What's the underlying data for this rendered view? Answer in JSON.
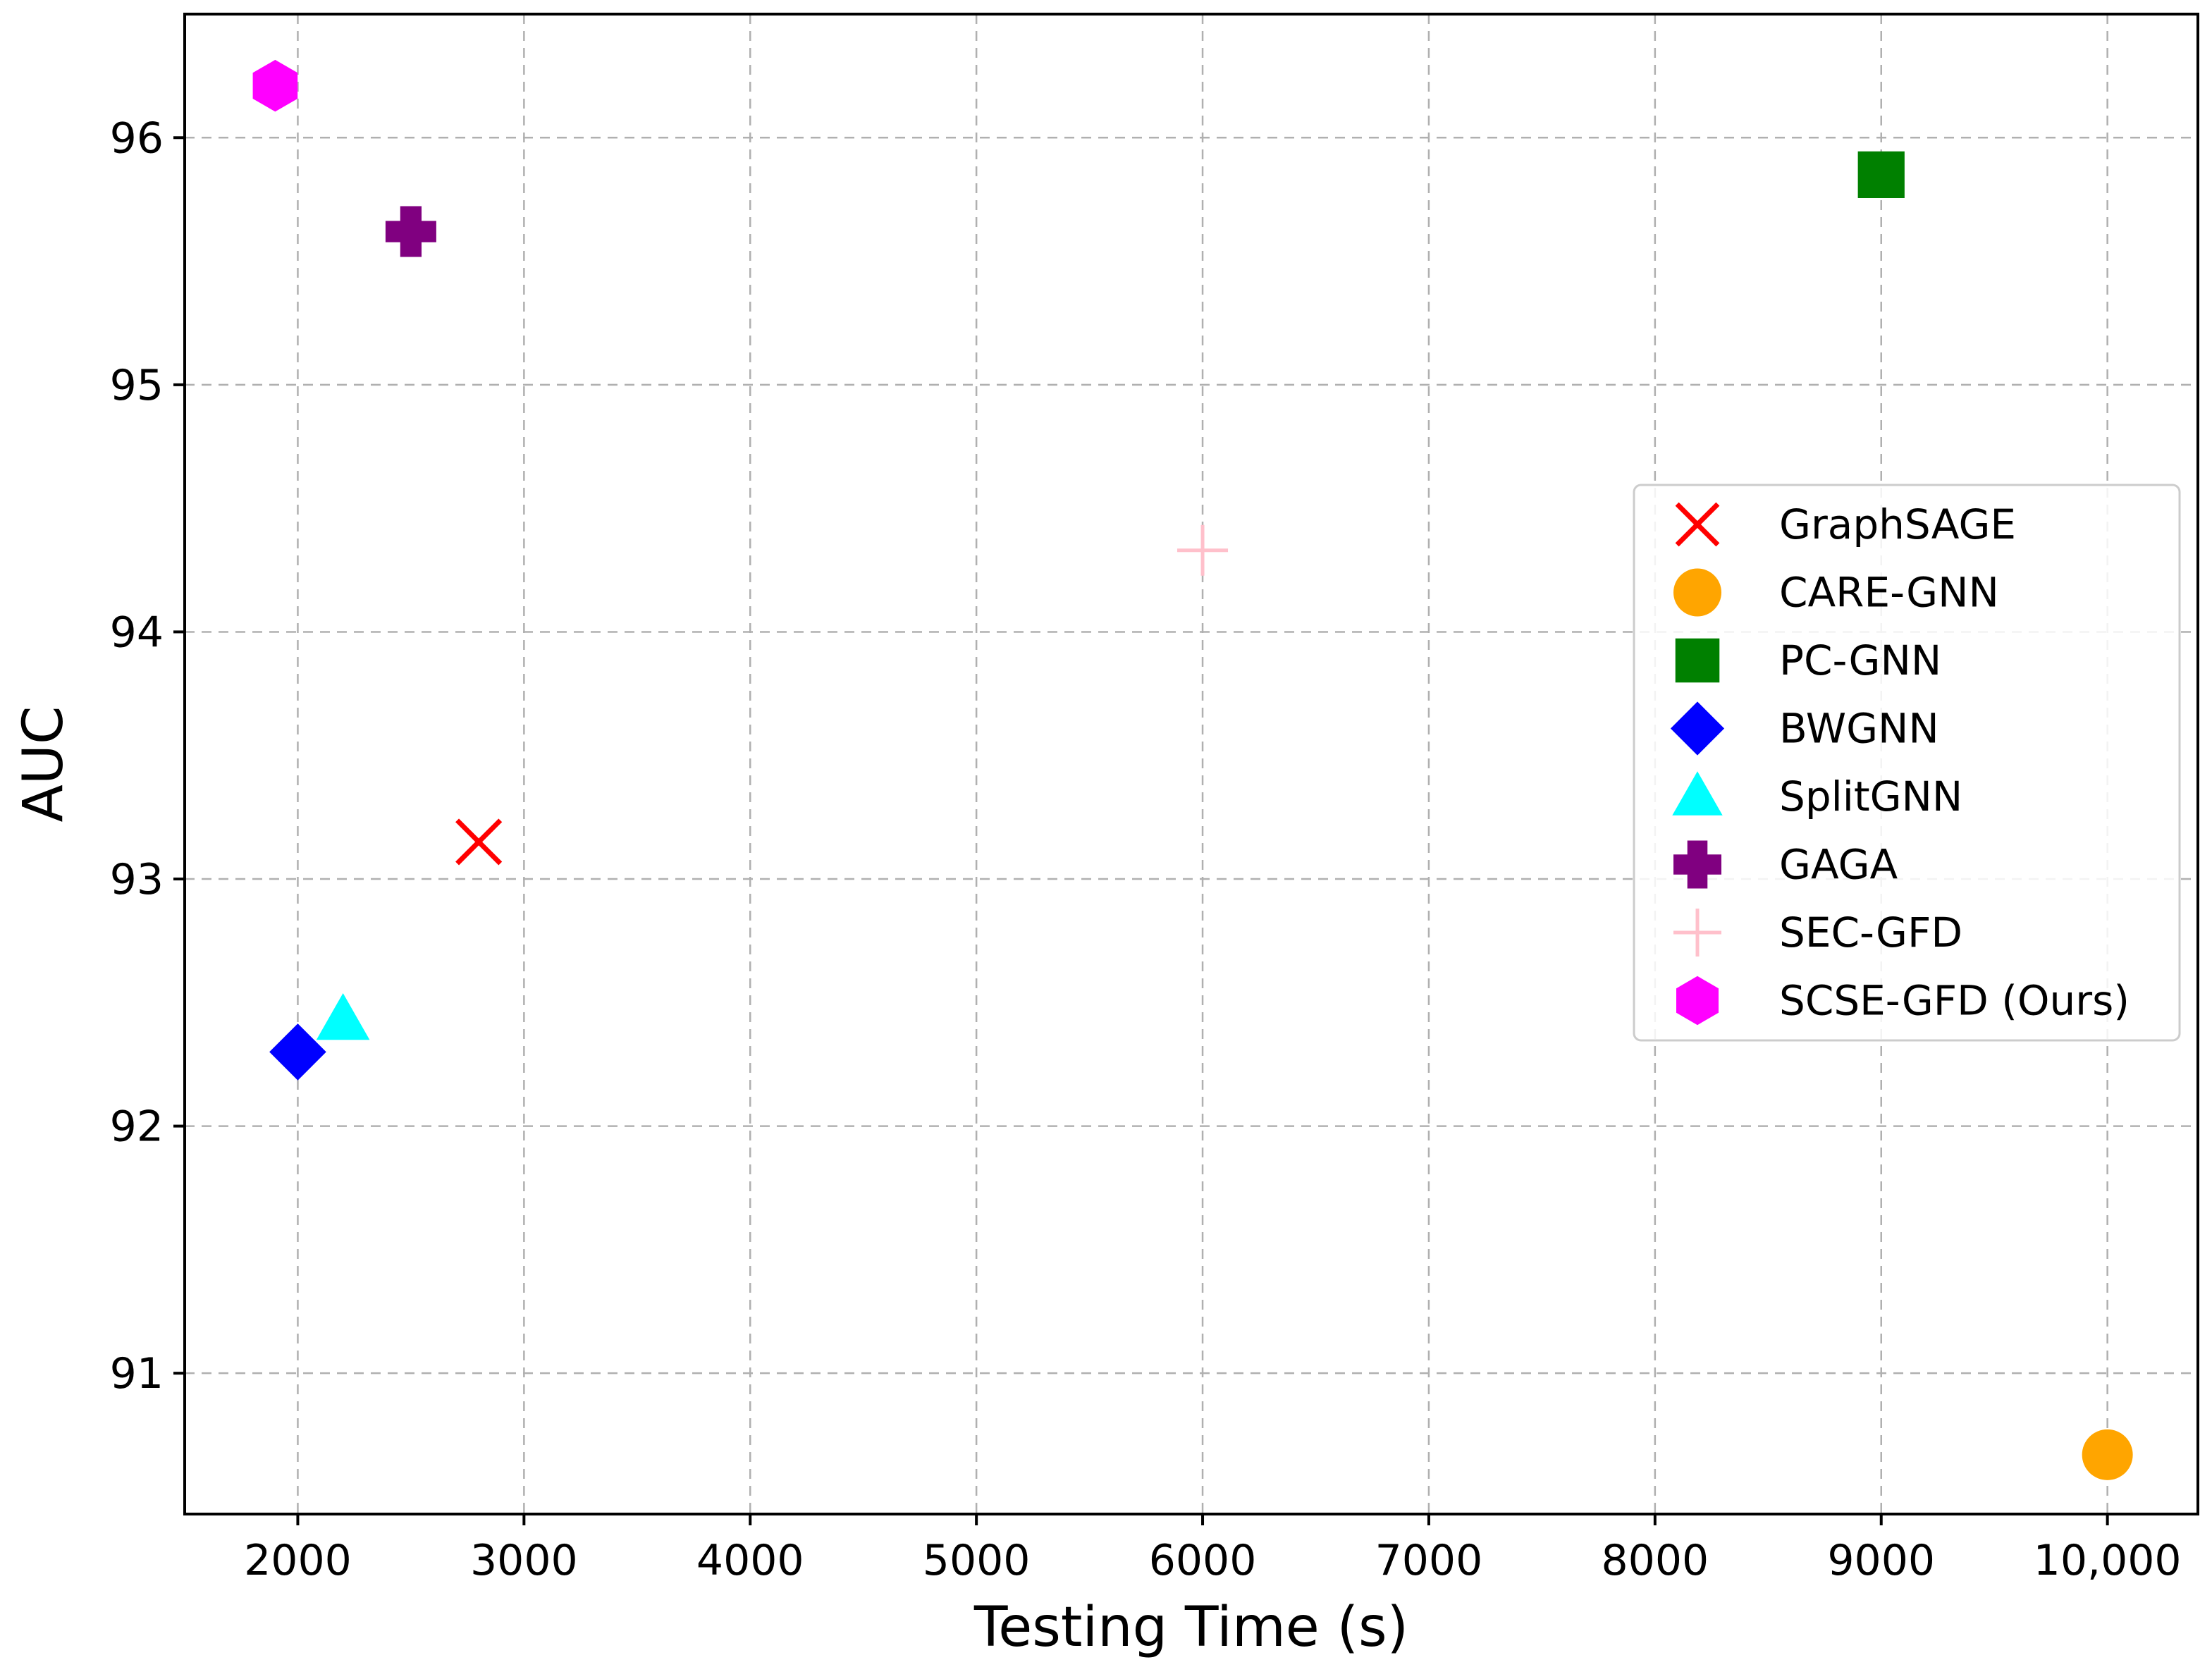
{
  "chart_data": {
    "type": "scatter",
    "title": "",
    "xlabel": "Testing Time (s)",
    "ylabel": "AUC",
    "xlim": [
      1500,
      10400
    ],
    "ylim": [
      90.43,
      96.5
    ],
    "grid": true,
    "legend_position": "center-right",
    "x_ticks": [
      2000,
      3000,
      4000,
      5000,
      6000,
      7000,
      8000,
      9000,
      10000
    ],
    "x_tick_labels": [
      "2000",
      "3000",
      "4000",
      "5000",
      "6000",
      "7000",
      "8000",
      "9000",
      "10,000"
    ],
    "y_ticks": [
      91,
      92,
      93,
      94,
      95,
      96
    ],
    "y_tick_labels": [
      "91",
      "92",
      "93",
      "94",
      "95",
      "96"
    ],
    "series": [
      {
        "name": "GraphSAGE",
        "marker": "x",
        "color": "#ff0000",
        "x": 2800,
        "y": 93.15
      },
      {
        "name": "CARE-GNN",
        "marker": "circle",
        "color": "#ffa500",
        "x": 10000,
        "y": 90.67
      },
      {
        "name": "PC-GNN",
        "marker": "square",
        "color": "#008000",
        "x": 9000,
        "y": 95.85
      },
      {
        "name": "BWGNN",
        "marker": "diamond",
        "color": "#0000ff",
        "x": 2000,
        "y": 92.3
      },
      {
        "name": "SplitGNN",
        "marker": "triangle",
        "color": "#00ffff",
        "x": 2200,
        "y": 92.43
      },
      {
        "name": "GAGA",
        "marker": "plus-filled",
        "color": "#800080",
        "x": 2500,
        "y": 95.62
      },
      {
        "name": "SEC-GFD",
        "marker": "plus",
        "color": "#ffc0cb",
        "x": 6000,
        "y": 94.33
      },
      {
        "name": "SCSE-GFD (Ours)",
        "marker": "hexagon",
        "color": "#ff00ff",
        "x": 1900,
        "y": 96.21
      }
    ]
  }
}
